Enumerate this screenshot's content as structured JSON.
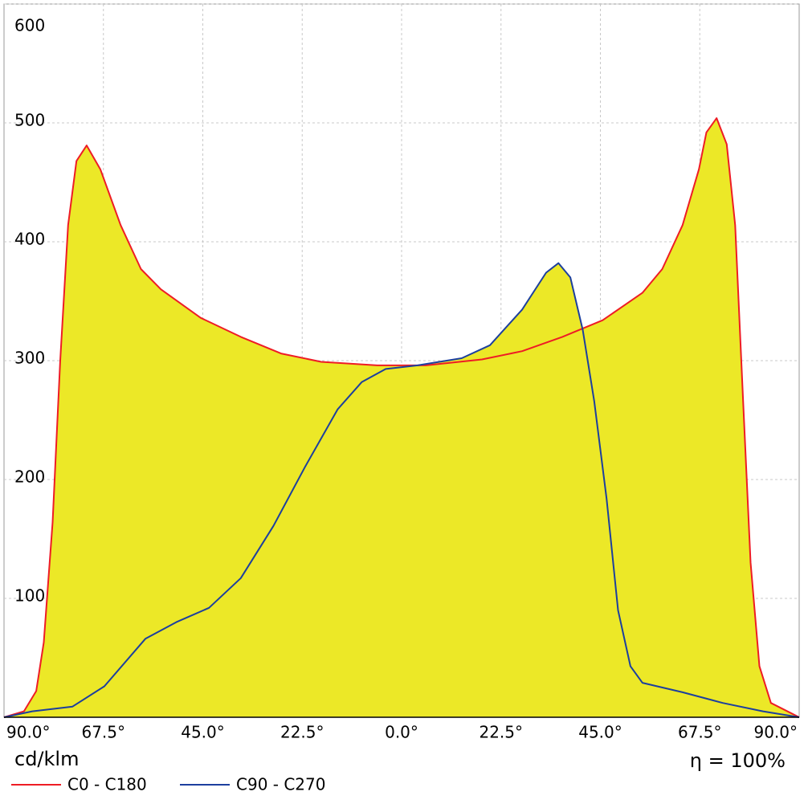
{
  "chart_data": {
    "type": "area",
    "xlim": [
      -90,
      90
    ],
    "xticks": [
      {
        "value": -90,
        "label": "90.0°"
      },
      {
        "value": -67.5,
        "label": "67.5°"
      },
      {
        "value": -45,
        "label": "45.0°"
      },
      {
        "value": -22.5,
        "label": "22.5°"
      },
      {
        "value": 0,
        "label": "0.0°"
      },
      {
        "value": 22.5,
        "label": "22.5°"
      },
      {
        "value": 45,
        "label": "45.0°"
      },
      {
        "value": 67.5,
        "label": "67.5°"
      },
      {
        "value": 90,
        "label": "90.0°"
      }
    ],
    "ylim": [
      0,
      600
    ],
    "yticks": [
      100,
      200,
      300,
      400,
      500,
      600
    ],
    "grid": true,
    "fill_color": "#ece827",
    "y_unit_label": "cd/klm",
    "efficiency_label": "η = 100%",
    "series": [
      {
        "name": "C0 - C180",
        "color": "#ee1c25",
        "x": [
          -90,
          -85.5,
          -82.7,
          -81,
          -79,
          -77.3,
          -75.5,
          -73.6,
          -71.3,
          -68.2,
          -63.6,
          -59,
          -54.5,
          -45.5,
          -36.4,
          -27.3,
          -18.2,
          -5.5,
          5.5,
          18.2,
          27.3,
          36.4,
          45.5,
          54.5,
          59,
          63.6,
          67.3,
          69,
          71.3,
          73.6,
          75.5,
          77.3,
          79,
          81,
          83.6,
          90
        ],
        "values": [
          0,
          5,
          22,
          63,
          164,
          299,
          414,
          468,
          481,
          461,
          414,
          377,
          360,
          336,
          320,
          306,
          299,
          296,
          296,
          301,
          308,
          320,
          334,
          357,
          377,
          414,
          461,
          492,
          504,
          482,
          414,
          266,
          130,
          43,
          12,
          0
        ]
      },
      {
        "name": "C90 - C270",
        "color": "#1c3f9e",
        "x": [
          -90,
          -83.6,
          -74.5,
          -67.3,
          -58,
          -51,
          -43.6,
          -36.4,
          -29,
          -21.8,
          -14.5,
          -9,
          -3.6,
          3.6,
          13.6,
          20,
          27.3,
          32.7,
          35.5,
          38.2,
          41,
          43.6,
          46.4,
          49,
          51.8,
          54.5,
          63.6,
          72.7,
          81.8,
          90
        ],
        "values": [
          0,
          5,
          9,
          26,
          66,
          80,
          92,
          117,
          161,
          211,
          259,
          282,
          293,
          296,
          302,
          313,
          343,
          374,
          382,
          370,
          326,
          266,
          184,
          90,
          43,
          29,
          21,
          12,
          5,
          0
        ]
      }
    ]
  }
}
